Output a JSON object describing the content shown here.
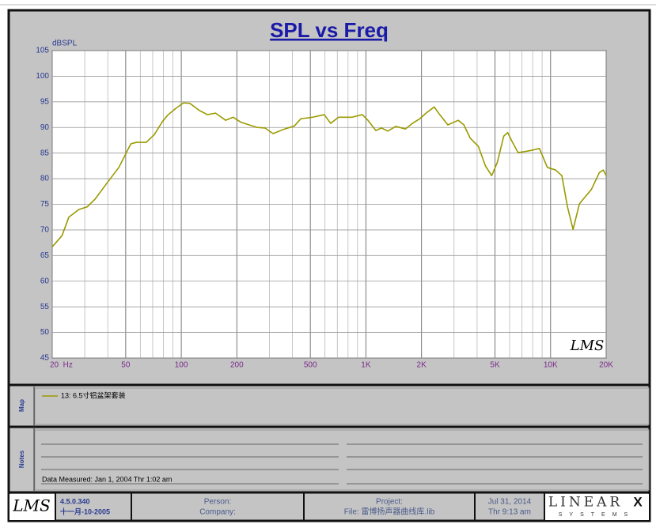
{
  "chart_data": {
    "type": "line",
    "title": "SPL vs Freq",
    "y_label": "dBSPL",
    "watermark": "LMS",
    "xscale": "log",
    "grid": true,
    "xlim": [
      20,
      20000
    ],
    "xticks": [
      {
        "value": 20,
        "label": "20  Hz"
      },
      50,
      100,
      200,
      500,
      {
        "value": 1000,
        "label": "1K"
      },
      {
        "value": 2000,
        "label": "2K"
      },
      {
        "value": 5000,
        "label": "5K"
      },
      {
        "value": 10000,
        "label": "10K"
      },
      {
        "value": 20000,
        "label": "20K"
      }
    ],
    "xminorticks": [
      30,
      40,
      60,
      70,
      80,
      90,
      300,
      400,
      600,
      700,
      800,
      900,
      3000,
      4000,
      6000,
      7000,
      8000,
      9000
    ],
    "ylim": [
      45,
      105
    ],
    "yticks": [
      45,
      50,
      55,
      60,
      65,
      70,
      75,
      80,
      85,
      90,
      95,
      100,
      105
    ],
    "x": [
      20,
      22.6,
      24.6,
      27.9,
      30.9,
      34.1,
      39.5,
      45.9,
      53.3,
      57.1,
      64.6,
      71.4,
      78.9,
      84.4,
      93.2,
      102.8,
      111.3,
      125.5,
      138.6,
      153.2,
      174,
      191,
      211,
      233,
      258,
      284,
      314,
      363,
      410,
      444,
      515,
      595,
      644,
      711,
      841,
      956,
      1025,
      1132,
      1214,
      1313,
      1451,
      1636,
      1770,
      1958,
      2117,
      2343,
      2511,
      2778,
      3160,
      3393,
      3672,
      4065,
      4438,
      4800,
      5150,
      5575,
      5860,
      6160,
      6665,
      7280,
      8040,
      8700,
      9610,
      10630,
      11510,
      12350,
      13240,
      14330,
      15510,
      16640,
      18380,
      19310,
      20000
    ],
    "series": [
      {
        "name": "13: 6.5寸铝盆架套装",
        "color": "#9a9a00",
        "values": [
          66.7,
          68.9,
          72.5,
          74.0,
          74.5,
          76.0,
          79.1,
          82.2,
          86.8,
          87.1,
          87.1,
          88.6,
          91.1,
          92.4,
          93.7,
          94.8,
          94.7,
          93.3,
          92.5,
          92.8,
          91.4,
          92.0,
          91.0,
          90.5,
          90.0,
          89.9,
          88.8,
          89.7,
          90.3,
          91.7,
          92.0,
          92.5,
          90.8,
          92.0,
          92.0,
          92.5,
          91.4,
          89.4,
          89.9,
          89.3,
          90.2,
          89.7,
          90.7,
          91.7,
          92.8,
          94.0,
          92.5,
          90.5,
          91.4,
          90.5,
          87.9,
          86.3,
          82.5,
          80.6,
          83.2,
          88.3,
          89.0,
          87.4,
          85.1,
          85.3,
          85.6,
          85.9,
          82.2,
          81.7,
          80.6,
          74.5,
          70.1,
          75.1,
          76.6,
          77.9,
          81.2,
          81.7,
          80.6
        ]
      }
    ]
  },
  "map": {
    "label": "Map"
  },
  "notes": {
    "label": "Notes",
    "measured": "Data Measured: Jan  1, 2004  Thr  1:02 am"
  },
  "footer": {
    "logo": "LMS",
    "version": "4.5.0.340",
    "version_date": "十一月-10-2005",
    "person": "Person:",
    "company": "Company:",
    "project": "Project:",
    "file": "File: 雷博扬声器曲线库.lib",
    "date": "Jul 31, 2014",
    "time": "Thr  9:13 am",
    "brand": "LINEAR",
    "brand_mark": "X",
    "brand_sub": "SYSTEMS"
  }
}
